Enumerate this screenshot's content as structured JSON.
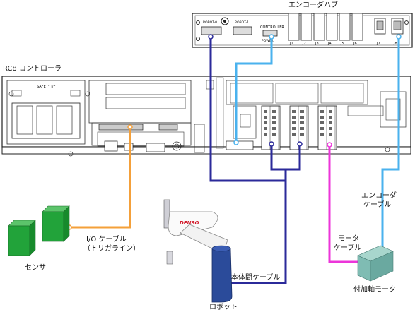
{
  "labels": {
    "encoder_hub": "エンコーダハブ",
    "controller": "RC8 コントローラ",
    "sensor": "センサ",
    "io_cable_line1": "I/O ケーブル",
    "io_cable_line2": "（トリガライン）",
    "robot": "ロボット",
    "body_cable": "本体間ケーブル",
    "motor_cable_line1": "モータ",
    "motor_cable_line2": "ケーブル",
    "encoder_cable_line1": "エンコーダ",
    "encoder_cable_line2": "ケーブル",
    "additional_motor": "付加軸モータ"
  },
  "hub_panel": {
    "robot_ports": [
      "ROBOT-0",
      "ROBOT-1"
    ],
    "controller": "CONTROLLER",
    "power": "POWER",
    "jacks": [
      "J1",
      "J2",
      "J3",
      "J4",
      "J5",
      "J6",
      "J7",
      "J8"
    ]
  },
  "controller_panel": {
    "safety": "SAFETY I/F",
    "robot_logo": "DENSO"
  },
  "colors": {
    "io_cable": "#f4a03a",
    "body_cable": "#2b2a9a",
    "motor_cable": "#ec35d9",
    "encoder_cable": "#4ab2ee",
    "sensor": "#22a33a",
    "motor": "#7fbcb3",
    "robot_arm": "#ffffff",
    "robot_base": "#2b4b9a"
  }
}
